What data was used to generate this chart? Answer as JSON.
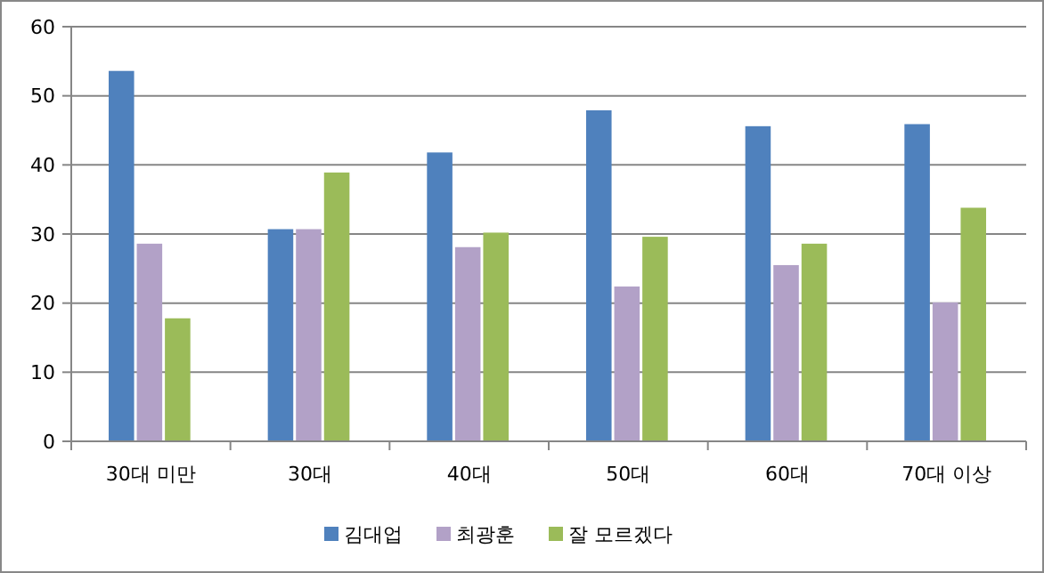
{
  "chart_data": {
    "type": "bar",
    "categories": [
      "30대 미만",
      "30대",
      "40대",
      "50대",
      "60대",
      "70대 이상"
    ],
    "series": [
      {
        "name": "김대업",
        "color": "#4f81bd",
        "values": [
          53.6,
          30.7,
          41.8,
          47.9,
          45.6,
          45.9
        ]
      },
      {
        "name": "최광훈",
        "color": "#b2a1c7",
        "values": [
          28.6,
          30.7,
          28.1,
          22.4,
          25.5,
          20.1
        ]
      },
      {
        "name": "잘 모르겠다",
        "color": "#9bbb59",
        "values": [
          17.8,
          38.9,
          30.2,
          29.6,
          28.6,
          33.8
        ]
      }
    ],
    "ylim": [
      0,
      60
    ],
    "yticks": [
      0,
      10,
      20,
      30,
      40,
      50,
      60
    ],
    "grid": "y",
    "legend": "bottom"
  }
}
